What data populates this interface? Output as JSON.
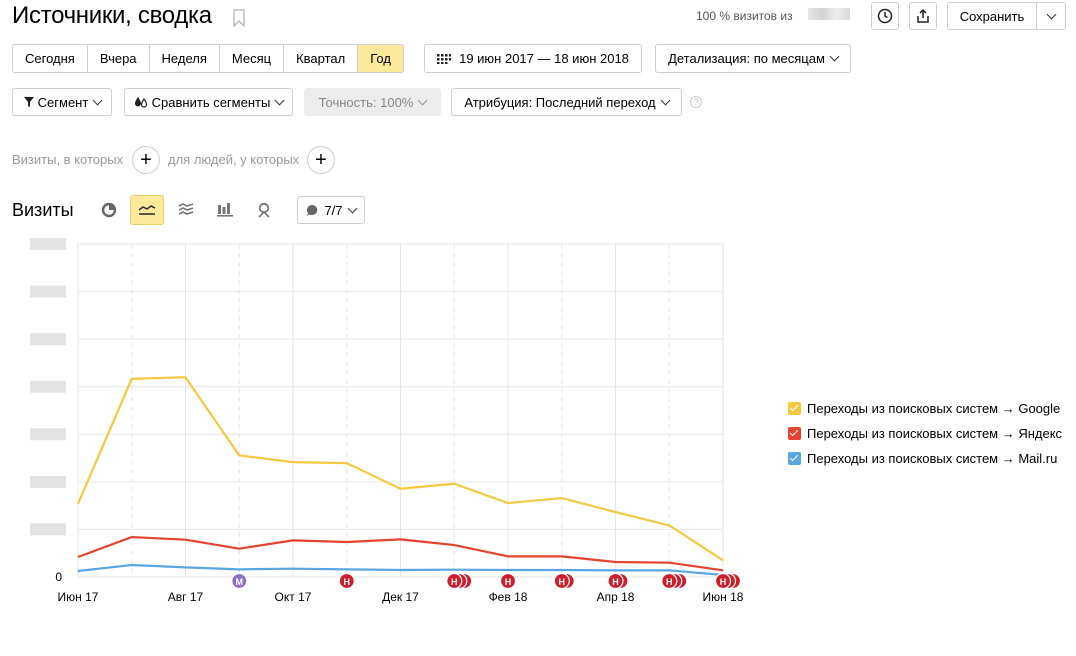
{
  "header": {
    "title": "Источники, сводка",
    "visits_percent": "100 % визитов из",
    "save_label": "Сохранить"
  },
  "period": {
    "options": [
      "Сегодня",
      "Вчера",
      "Неделя",
      "Месяц",
      "Квартал",
      "Год"
    ],
    "active": "Год",
    "date_range": "19 июн 2017 — 18 июн 2018",
    "detail": "Детализация: по месяцам"
  },
  "toolbar": {
    "segment": "Сегмент",
    "compare": "Сравнить сегменты",
    "accuracy": "Точность: 100%",
    "attribution": "Атрибуция: Последний переход",
    "help": "?"
  },
  "filters": {
    "visits_label": "Визиты, в которых",
    "people_label": "для людей, у которых"
  },
  "section": {
    "title": "Визиты",
    "notes_label": "7/7"
  },
  "colors": {
    "google": "#f5c93f",
    "yandex": "#e5432e",
    "mailru": "#5aa6e0",
    "active_bg": "#fde99c",
    "note_red": "#cc1f2b",
    "note_purple": "#8e6fc5"
  },
  "chart_data": {
    "type": "line",
    "x_tick_labels": [
      "Июн 17",
      "Авг 17",
      "Окт 17",
      "Дек 17",
      "Фев 18",
      "Апр 18",
      "Июн 18"
    ],
    "y_tick_labels": [
      "0"
    ],
    "ylim": [
      0,
      100
    ],
    "grid": true,
    "legend_position": "right",
    "series": [
      {
        "name": "Переходы из поисковых систем → Google",
        "color": "#f5c93f",
        "values": [
          22,
          59.5,
          60,
          36.5,
          34.5,
          34.2,
          26.5,
          28,
          22.2,
          23.7,
          19.5,
          15.5,
          5
        ]
      },
      {
        "name": "Переходы из поисковых систем → Яндекс",
        "color": "#e5432e",
        "values": [
          6,
          12,
          11.2,
          8.5,
          11,
          10.5,
          11.3,
          9.6,
          6.2,
          6.2,
          4.5,
          4.3,
          2
        ]
      },
      {
        "name": "Переходы из поисковых систем → Mail.ru",
        "color": "#5aa6e0",
        "values": [
          1.8,
          3.6,
          2.9,
          2.3,
          2.5,
          2.3,
          2.1,
          2.2,
          2.1,
          2.1,
          2,
          2,
          0.6
        ]
      }
    ],
    "notes": [
      {
        "pos": 3,
        "kind": "purple",
        "count": 1
      },
      {
        "pos": 5,
        "kind": "red",
        "count": 1
      },
      {
        "pos": 7,
        "kind": "red",
        "count": 3
      },
      {
        "pos": 8,
        "kind": "red",
        "count": 1
      },
      {
        "pos": 9,
        "kind": "red",
        "count": 2
      },
      {
        "pos": 10,
        "kind": "red",
        "count": 2
      },
      {
        "pos": 11,
        "kind": "red",
        "count": 3
      },
      {
        "pos": 12,
        "kind": "red",
        "count": 3
      }
    ]
  }
}
